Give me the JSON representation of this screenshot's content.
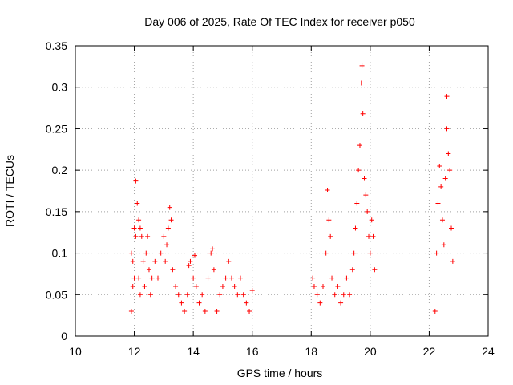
{
  "chart_data": {
    "type": "scatter",
    "title": "Day 006 of 2025, Rate Of TEC Index for receiver p050",
    "xlabel": "GPS time / hours",
    "ylabel": "ROTI / TECUs",
    "xlim": [
      10,
      24
    ],
    "ylim": [
      0,
      0.35
    ],
    "x_ticks": [
      "10",
      "12",
      "14",
      "16",
      "18",
      "20",
      "22",
      "24"
    ],
    "y_ticks": [
      "0",
      "0.05",
      "0.1",
      "0.15",
      "0.2",
      "0.25",
      "0.3",
      "0.35"
    ],
    "grid": true,
    "marker": "+",
    "color": "#ff0000",
    "series": [
      {
        "name": "ROTI p050",
        "x": [
          11.9,
          11.9,
          11.95,
          11.95,
          12.0,
          12.0,
          12.05,
          12.05,
          12.1,
          12.15,
          12.15,
          12.2,
          12.2,
          12.25,
          12.3,
          12.35,
          12.4,
          12.45,
          12.5,
          12.55,
          12.6,
          12.7,
          12.8,
          12.9,
          13.0,
          13.05,
          13.1,
          13.15,
          13.2,
          13.25,
          13.3,
          13.4,
          13.5,
          13.6,
          13.7,
          13.8,
          13.85,
          13.9,
          14.0,
          14.05,
          14.1,
          14.2,
          14.3,
          14.4,
          14.5,
          14.6,
          14.65,
          14.7,
          14.8,
          14.9,
          15.0,
          15.1,
          15.2,
          15.3,
          15.4,
          15.5,
          15.6,
          15.7,
          15.8,
          15.9,
          16.0,
          18.05,
          18.1,
          18.2,
          18.3,
          18.4,
          18.5,
          18.55,
          18.6,
          18.65,
          18.7,
          18.8,
          18.9,
          19.0,
          19.1,
          19.2,
          19.3,
          19.4,
          19.45,
          19.5,
          19.55,
          19.6,
          19.65,
          19.7,
          19.72,
          19.75,
          19.8,
          19.85,
          19.9,
          19.95,
          20.0,
          20.05,
          20.1,
          20.15,
          22.2,
          22.25,
          22.3,
          22.35,
          22.4,
          22.45,
          22.5,
          22.55,
          22.6,
          22.6,
          22.65,
          22.7,
          22.75,
          22.8
        ],
        "y": [
          0.1,
          0.03,
          0.09,
          0.06,
          0.13,
          0.07,
          0.187,
          0.12,
          0.16,
          0.14,
          0.07,
          0.13,
          0.05,
          0.12,
          0.09,
          0.06,
          0.1,
          0.12,
          0.08,
          0.05,
          0.07,
          0.09,
          0.07,
          0.1,
          0.12,
          0.09,
          0.11,
          0.13,
          0.155,
          0.14,
          0.08,
          0.06,
          0.05,
          0.04,
          0.03,
          0.05,
          0.085,
          0.09,
          0.07,
          0.097,
          0.06,
          0.04,
          0.05,
          0.03,
          0.07,
          0.1,
          0.105,
          0.08,
          0.03,
          0.05,
          0.06,
          0.07,
          0.09,
          0.07,
          0.06,
          0.05,
          0.07,
          0.05,
          0.04,
          0.03,
          0.055,
          0.07,
          0.06,
          0.05,
          0.04,
          0.06,
          0.1,
          0.176,
          0.14,
          0.12,
          0.07,
          0.05,
          0.06,
          0.04,
          0.05,
          0.07,
          0.05,
          0.08,
          0.1,
          0.13,
          0.16,
          0.2,
          0.23,
          0.305,
          0.326,
          0.268,
          0.19,
          0.17,
          0.15,
          0.12,
          0.1,
          0.14,
          0.12,
          0.08,
          0.03,
          0.1,
          0.16,
          0.205,
          0.18,
          0.14,
          0.11,
          0.19,
          0.289,
          0.25,
          0.22,
          0.2,
          0.13,
          0.09
        ]
      }
    ]
  }
}
